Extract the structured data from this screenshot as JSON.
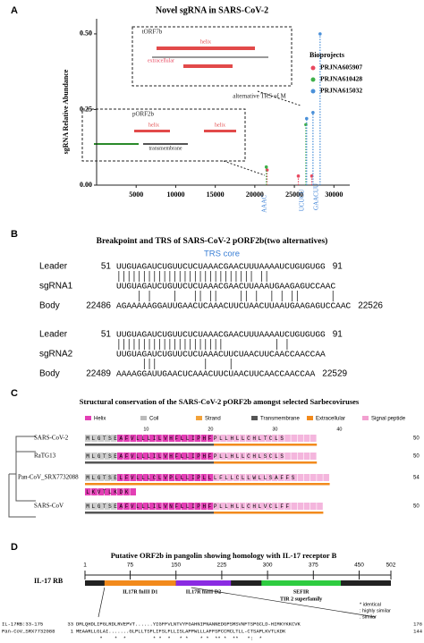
{
  "chart_data": {
    "type": "scatter",
    "panel_label": "A",
    "title": "Novel sgRNA in SARS-CoV-2",
    "y_label": "sgRNA Relative Abundance",
    "legend_title": "Bioprojects",
    "legend": "upper right",
    "xlim": [
      0,
      32000
    ],
    "xticks": [
      5000,
      10000,
      15000,
      20000,
      25000,
      30000
    ],
    "ylim": [
      0,
      0.55
    ],
    "yticks": [
      {
        "value": 0,
        "label": "0.00"
      },
      {
        "value": 0.25,
        "label": "0.25"
      },
      {
        "value": 0.5,
        "label": "0.50"
      }
    ],
    "series": [
      {
        "name": "PRJNA605907",
        "color": "#e8485f",
        "x": [
          21550,
          25500,
          27200
        ],
        "values": [
          0.05,
          0.03,
          0.03
        ]
      },
      {
        "name": "PRJNA610428",
        "color": "#3fb04a",
        "x": [
          21450,
          26450
        ],
        "values": [
          0.06,
          0.2
        ]
      },
      {
        "name": "PRJNA615032",
        "color": "#4a90d9",
        "x": [
          26550,
          27350,
          28250
        ],
        "values": [
          0.22,
          0.24,
          0.5
        ]
      }
    ],
    "annotations": [
      "tORF7b",
      "pORF2b",
      "alternative TRS of M",
      "helix",
      "extracellular",
      "helix",
      "helix",
      "transmembrane",
      "AAAC",
      "UCUCU",
      "GAACUU"
    ]
  },
  "panel_b": {
    "label": "B",
    "title": "Breakpoint and TRS of SARS-CoV-2 pORF2b(two alternatives)",
    "trs_label": "TRS core",
    "groups": [
      {
        "rows": [
          {
            "name": "Leader",
            "start": 51,
            "seq": "UUGUAGAUCUGUUCUCUAAACGAACUUUAAAAUCUGUGUGG",
            "end": 91
          },
          {
            "name": "sgRNA1",
            "seq": "UUGUAGAUCUGUUCUCUAAACGAACUUAAAUGAAGAGUCCAAC"
          },
          {
            "name": "Body",
            "start": 22486,
            "seq": "AGAAAAAGGAUUGAACUCAAACUUCUAACUUAAUGAAGAGUCCAAC",
            "end": 22526
          }
        ]
      },
      {
        "rows": [
          {
            "name": "Leader",
            "start": 51,
            "seq": "UUGUAGAUCUGUUCUCUAAACGAACUUUAAAAUCUGUGUGG",
            "end": 91
          },
          {
            "name": "sgRNA2",
            "seq": "UUGUAGAUCUGUUCUCUAAACUUCUAACUUCAACCAACCAA"
          },
          {
            "name": "Body",
            "start": 22489,
            "seq": "AAAAGGAUUGAACUCAAACUUCUAACUUCAACCAACCAA",
            "end": 22529
          }
        ]
      }
    ]
  },
  "panel_c": {
    "label": "C",
    "title": "Structural conservation of the SARS-CoV-2 pORF2b amongst selected Sarbecoviruses",
    "legend": [
      "Helix",
      "Coil",
      "Strand",
      "Transmembrane",
      "Extracellular",
      "Signal peptide"
    ],
    "ticks": [
      10,
      20,
      30,
      40
    ],
    "rows": [
      {
        "name": "SARS-CoV-2",
        "seq": "MLGTSEAFVLLLILVHFLLIPHFPLLHLLCHLTCLS",
        "end": 50
      },
      {
        "name": "RaTG13",
        "seq": "MLGTSEAFVLLLILVHFLLIPHFPLLHLLCHLSCLS",
        "end": 50
      },
      {
        "name": "Pan-CoV_SRX7732088",
        "seq": "MLGTSELFVLLLCLVPLLLIPLLLFLLCLLWLLSAFFS",
        "seq2": "LKVTLKDK",
        "end": 54
      },
      {
        "name": "SARS-CoV",
        "seq": "MLGTSEAFVLLLILVNFLLIPHFPLLHLLCHLVCLFF",
        "end": 50
      }
    ]
  },
  "panel_d": {
    "label": "D",
    "title": "Putative ORF2b in pangolin showing homology with IL-17 receptor B",
    "protein": "IL-17 RB",
    "ticks": [
      1,
      75,
      150,
      225,
      300,
      375,
      450,
      502
    ],
    "domains": [
      {
        "label": "IL17R fnIII D1",
        "start": 33,
        "end": 150,
        "color": "#f28a1c"
      },
      {
        "label": "IL17R fnIII D2",
        "start": 150,
        "end": 240,
        "color": "#8a2be2"
      },
      {
        "label": "SEFIR",
        "label2": "TIR 2 superfamily",
        "start": 290,
        "end": 420,
        "color": "#2ecc40"
      }
    ],
    "key": [
      "* identical",
      ": highly similar",
      ". similar"
    ],
    "alignment": [
      {
        "name": "IL-17RB:33-175",
        "start": 33,
        "seq": "DMLQHDLIPGLRDLRVEPVT......YIGFFVLNTVYFGAHNIPNANNEDGPSMSVNFTSPGCLD-HIMKYKKCVK",
        "end": 176
      },
      {
        "name": "Pan-CoV_SRX7732088",
        "start": 1,
        "seq": "MEAARLLGLAI.......GLPLLTSFLIFSLFLLISLAPPWLLLAFFSPCCMCLTLL-CTSAPLKVTLKDK",
        "end": 144
      },
      {
        "seq": "        *    *  *         * *  *   * *    * *  ** *  **   *:  *"
      }
    ]
  }
}
